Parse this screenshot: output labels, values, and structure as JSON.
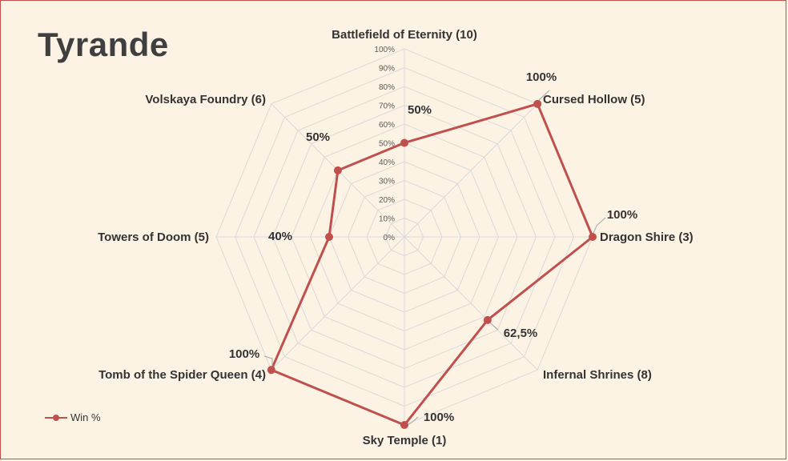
{
  "chart_data": {
    "type": "radar",
    "title": "Tyrande",
    "categories": [
      "Battlefield of Eternity (10)",
      "Cursed Hollow (5)",
      "Dragon Shire (3)",
      "Infernal Shrines (8)",
      "Sky Temple (1)",
      "Tomb of the Spider Queen (4)",
      "Towers of Doom (5)",
      "Volskaya Foundry (6)"
    ],
    "series": [
      {
        "name": "Win %",
        "values": [
          50,
          100,
          100,
          62.5,
          100,
          100,
          40,
          50
        ],
        "labels": [
          "50%",
          "100%",
          "100%",
          "62,5%",
          "100%",
          "100%",
          "40%",
          "50%"
        ]
      }
    ],
    "ticks": [
      "0%",
      "10%",
      "20%",
      "30%",
      "40%",
      "50%",
      "60%",
      "70%",
      "80%",
      "90%",
      "100%"
    ],
    "rlim": [
      0,
      100
    ],
    "grid": true,
    "legend_position": "bottom-left",
    "colors": {
      "series": "#c0504d",
      "grid": "#d9d9d9",
      "text": "#333333",
      "background": "#fdf3e5"
    }
  }
}
